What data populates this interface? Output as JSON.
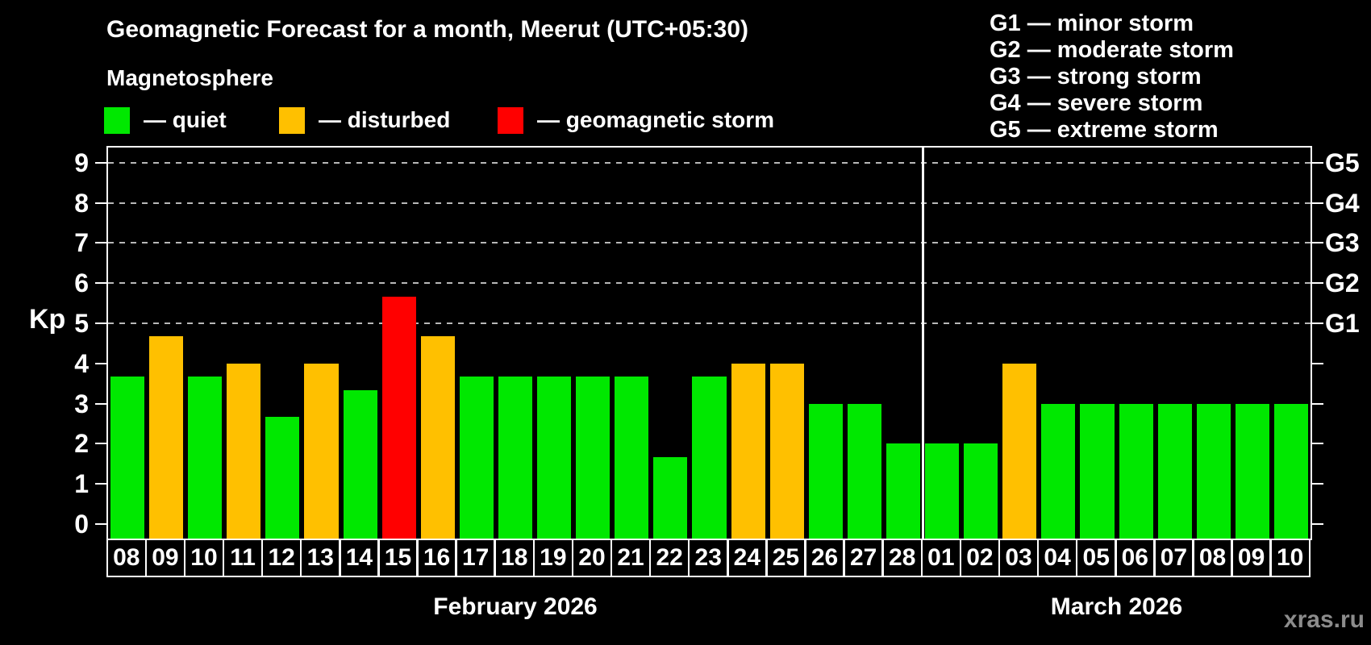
{
  "watermark": "xras.ru",
  "colors": {
    "background": "#000000",
    "axis": "#ffffff",
    "grid": "#b8b8b8",
    "watermark": "#8c8c8c",
    "quiet": "#00e800",
    "disturbed": "#ffc000",
    "storm": "#ff0000"
  },
  "chart_data": {
    "type": "bar",
    "title": "Geomagnetic Forecast for a month, Meerut (UTC+05:30)",
    "subtitle": "Magnetosphere",
    "legend_position": "top",
    "legend": [
      {
        "key": "quiet",
        "label": "— quiet"
      },
      {
        "key": "disturbed",
        "label": "— disturbed"
      },
      {
        "key": "storm",
        "label": "— geomagnetic storm"
      }
    ],
    "right_legend": [
      "G1 — minor storm",
      "G2 — moderate storm",
      "G3 — strong storm",
      "G4 — severe storm",
      "G5 — extreme storm"
    ],
    "ylabel": "Kp",
    "ylim": [
      0,
      9
    ],
    "y_ticks": [
      0,
      1,
      2,
      3,
      4,
      5,
      6,
      7,
      8,
      9
    ],
    "grid_levels": [
      5,
      6,
      7,
      8,
      9
    ],
    "grid_style": "dashed horizontal lines at G-storm levels only",
    "right_axis": [
      {
        "kp": 5,
        "label": "G1"
      },
      {
        "kp": 6,
        "label": "G2"
      },
      {
        "kp": 7,
        "label": "G3"
      },
      {
        "kp": 8,
        "label": "G4"
      },
      {
        "kp": 9,
        "label": "G5"
      }
    ],
    "months": [
      {
        "label": "February 2026",
        "days": [
          {
            "day": "08",
            "kp": 3.67,
            "status": "quiet"
          },
          {
            "day": "09",
            "kp": 4.67,
            "status": "disturbed"
          },
          {
            "day": "10",
            "kp": 3.67,
            "status": "quiet"
          },
          {
            "day": "11",
            "kp": 4.0,
            "status": "disturbed"
          },
          {
            "day": "12",
            "kp": 2.67,
            "status": "quiet"
          },
          {
            "day": "13",
            "kp": 4.0,
            "status": "disturbed"
          },
          {
            "day": "14",
            "kp": 3.33,
            "status": "quiet"
          },
          {
            "day": "15",
            "kp": 5.67,
            "status": "storm"
          },
          {
            "day": "16",
            "kp": 4.67,
            "status": "disturbed"
          },
          {
            "day": "17",
            "kp": 3.67,
            "status": "quiet"
          },
          {
            "day": "18",
            "kp": 3.67,
            "status": "quiet"
          },
          {
            "day": "19",
            "kp": 3.67,
            "status": "quiet"
          },
          {
            "day": "20",
            "kp": 3.67,
            "status": "quiet"
          },
          {
            "day": "21",
            "kp": 3.67,
            "status": "quiet"
          },
          {
            "day": "22",
            "kp": 1.67,
            "status": "quiet"
          },
          {
            "day": "23",
            "kp": 3.67,
            "status": "quiet"
          },
          {
            "day": "24",
            "kp": 4.0,
            "status": "disturbed"
          },
          {
            "day": "25",
            "kp": 4.0,
            "status": "disturbed"
          },
          {
            "day": "26",
            "kp": 3.0,
            "status": "quiet"
          },
          {
            "day": "27",
            "kp": 3.0,
            "status": "quiet"
          },
          {
            "day": "28",
            "kp": 2.0,
            "status": "quiet"
          }
        ]
      },
      {
        "label": "March 2026",
        "days": [
          {
            "day": "01",
            "kp": 2.0,
            "status": "quiet"
          },
          {
            "day": "02",
            "kp": 2.0,
            "status": "quiet"
          },
          {
            "day": "03",
            "kp": 4.0,
            "status": "disturbed"
          },
          {
            "day": "04",
            "kp": 3.0,
            "status": "quiet"
          },
          {
            "day": "05",
            "kp": 3.0,
            "status": "quiet"
          },
          {
            "day": "06",
            "kp": 3.0,
            "status": "quiet"
          },
          {
            "day": "07",
            "kp": 3.0,
            "status": "quiet"
          },
          {
            "day": "08",
            "kp": 3.0,
            "status": "quiet"
          },
          {
            "day": "09",
            "kp": 3.0,
            "status": "quiet"
          },
          {
            "day": "10",
            "kp": 3.0,
            "status": "quiet"
          }
        ]
      }
    ]
  }
}
